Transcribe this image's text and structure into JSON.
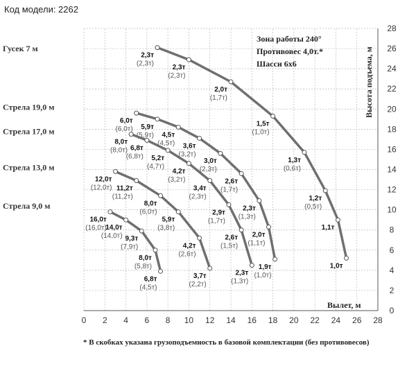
{
  "header": {
    "model_code": "Код модели: 2262"
  },
  "chart_data": {
    "type": "line",
    "xlabel": "Вылет, м",
    "ylabel": "Высота подъема, м",
    "xlim": [
      0,
      28
    ],
    "ylim": [
      0,
      28
    ],
    "x_ticks": [
      0,
      2,
      4,
      6,
      8,
      10,
      12,
      14,
      16,
      18,
      20,
      22,
      24,
      26,
      28
    ],
    "y_ticks": [
      0,
      2,
      4,
      6,
      8,
      10,
      12,
      14,
      16,
      18,
      20,
      22,
      24,
      26,
      28
    ],
    "grid": true,
    "info": [
      "Зона работы 240°",
      "Противовес 4,0т.*",
      "Шасси 6х6"
    ],
    "footnote": "* В скобках указана грузоподъемность в базовой комплектации (без противовесов)",
    "series": [
      {
        "name": "Гусек 7 м",
        "label_y": 26,
        "points": [
          {
            "x": 7,
            "y": 26.1,
            "load": "2,3т",
            "base": "(2,3т)"
          },
          {
            "x": 10,
            "y": 24.9,
            "load": "2,3т",
            "base": "(2,3т)"
          },
          {
            "x": 14,
            "y": 22.7,
            "load": "2,0т",
            "base": "(1,7т)"
          },
          {
            "x": 18,
            "y": 19.3,
            "load": "1,5т",
            "base": "(1,0т)"
          },
          {
            "x": 21,
            "y": 15.7,
            "load": "1,3т",
            "base": "(0,6т)"
          },
          {
            "x": 23,
            "y": 11.9,
            "load": "1,2т",
            "base": "(0,5т)"
          },
          {
            "x": 24.2,
            "y": 9.0,
            "load": "1,1т",
            "base": ""
          },
          {
            "x": 25,
            "y": 5.2,
            "load": "1,0т",
            "base": ""
          }
        ]
      },
      {
        "name": "Стрела 19,0 м",
        "label_y": 20.2,
        "points": [
          {
            "x": 5,
            "y": 19.6,
            "load": "6,0т",
            "base": "(6,0т)"
          },
          {
            "x": 7,
            "y": 19.0,
            "load": "5,9т",
            "base": "(5,9т)"
          },
          {
            "x": 9,
            "y": 18.2,
            "load": "4,5т",
            "base": "(4,5т)"
          },
          {
            "x": 11,
            "y": 17.1,
            "load": "3,6т",
            "base": "(3,2т)"
          },
          {
            "x": 13,
            "y": 15.6,
            "load": "3,0т",
            "base": "(2,3т)"
          },
          {
            "x": 15,
            "y": 13.6,
            "load": "2,6т",
            "base": "(1,7т)"
          },
          {
            "x": 16.7,
            "y": 10.9,
            "load": "2,3т",
            "base": "(1,3т)"
          },
          {
            "x": 17.6,
            "y": 8.3,
            "load": "2,0т",
            "base": "(1,1т)"
          },
          {
            "x": 18.2,
            "y": 5.1,
            "load": "1,9т",
            "base": "(1,0т)"
          }
        ]
      },
      {
        "name": "Стрела 17,0 м",
        "label_y": 17.8,
        "points": [
          {
            "x": 4.5,
            "y": 17.5,
            "load": "8,0т",
            "base": "(8,0т)"
          },
          {
            "x": 6,
            "y": 16.9,
            "load": "6,8т",
            "base": "(6,8т)"
          },
          {
            "x": 8,
            "y": 15.9,
            "load": "5,2т",
            "base": "(4,7т)"
          },
          {
            "x": 10,
            "y": 14.6,
            "load": "4,2т",
            "base": "(3,2т)"
          },
          {
            "x": 12,
            "y": 12.9,
            "load": "3,4т",
            "base": "(2,3т)"
          },
          {
            "x": 13.8,
            "y": 10.5,
            "load": "2,9т",
            "base": "(1,7т)"
          },
          {
            "x": 15,
            "y": 8.0,
            "load": "2,6т",
            "base": "(1,5т)"
          },
          {
            "x": 16,
            "y": 4.5,
            "load": "2,3т",
            "base": "(1,3т)"
          }
        ]
      },
      {
        "name": "Стрела 13,0 м",
        "label_y": 14.2,
        "points": [
          {
            "x": 3,
            "y": 13.8,
            "load": "12,0т",
            "base": "(12,0т)"
          },
          {
            "x": 5,
            "y": 12.9,
            "load": "11,2т",
            "base": "(11,2т)"
          },
          {
            "x": 7.3,
            "y": 11.4,
            "load": "8,0т",
            "base": "(6,0т)"
          },
          {
            "x": 9,
            "y": 9.8,
            "load": "5,9т",
            "base": "(3,8т)"
          },
          {
            "x": 11,
            "y": 7.2,
            "load": "4,2т",
            "base": "(2,6т)"
          },
          {
            "x": 12,
            "y": 4.2,
            "load": "3,7т",
            "base": "(2,2т)"
          }
        ]
      },
      {
        "name": "Стрела 9,0 м",
        "label_y": 10.4,
        "points": [
          {
            "x": 2.5,
            "y": 9.8,
            "load": "16,0т",
            "base": "(16,0т)"
          },
          {
            "x": 4,
            "y": 9.0,
            "load": "14,0т",
            "base": "(14,0т)"
          },
          {
            "x": 5.5,
            "y": 7.9,
            "load": "9,3т",
            "base": "(7,9т)"
          },
          {
            "x": 6.8,
            "y": 6.0,
            "load": "8,0т",
            "base": "(5,8т)"
          },
          {
            "x": 7.3,
            "y": 3.9,
            "load": "6,8т",
            "base": "(4,5т)"
          }
        ]
      }
    ]
  }
}
